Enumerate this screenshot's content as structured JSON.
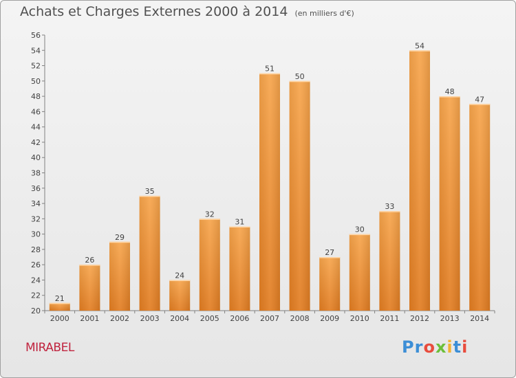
{
  "header": {
    "title": "Achats et Charges Externes 2000 à 2014",
    "unit": "(en milliers d'€)"
  },
  "footer": {
    "place": "MIRABEL",
    "logo": [
      "P",
      "r",
      "o",
      "x",
      "i",
      "t",
      "i"
    ]
  },
  "colors": {
    "bar_light": "#f6a650",
    "bar_dark": "#e8892b",
    "title": "#505050",
    "place": "#c0243f",
    "logo": [
      "#3c8ed6",
      "#3c8ed6",
      "#e84c3d",
      "#6cbf3a",
      "#f2b233",
      "#3c8ed6",
      "#e84c3d"
    ]
  },
  "chart_data": {
    "type": "bar",
    "categories": [
      "2000",
      "2001",
      "2002",
      "2003",
      "2004",
      "2005",
      "2006",
      "2007",
      "2008",
      "2009",
      "2010",
      "2011",
      "2012",
      "2013",
      "2014"
    ],
    "values": [
      21,
      26,
      29,
      35,
      24,
      32,
      31,
      51,
      50,
      27,
      30,
      33,
      54,
      48,
      47
    ],
    "ylim": [
      20,
      56
    ],
    "yticks": [
      20,
      22,
      24,
      26,
      28,
      30,
      32,
      34,
      36,
      38,
      40,
      42,
      44,
      46,
      48,
      50,
      52,
      54,
      56
    ],
    "grid": false
  }
}
